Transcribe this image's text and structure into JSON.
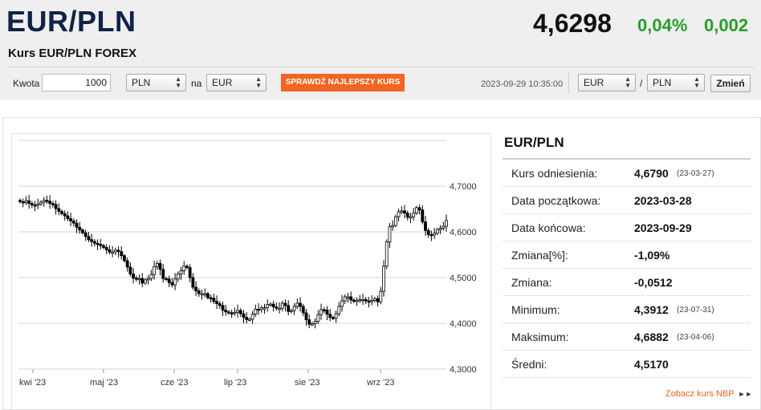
{
  "header": {
    "pair": "EUR/PLN",
    "subtitle": "Kurs EUR/PLN FOREX",
    "rate": "4,6298",
    "change_pct": "0,04%",
    "change_abs": "0,002"
  },
  "toolbar": {
    "amount_label": "Kwota",
    "amount_value": "1000",
    "from_currency": "PLN",
    "na_label": "na",
    "to_currency": "EUR",
    "best_rate_button": "SPRAWDŹ NAJLEPSZY KURS",
    "timestamp": "2023-09-29 10:35:00",
    "pair_base": "EUR",
    "slash": "/",
    "pair_quote": "PLN",
    "change_button": "Zmień"
  },
  "stats": {
    "title": "EUR/PLN",
    "rows": [
      {
        "label": "Kurs odniesienia:",
        "value": "4,6790",
        "date": "(23-03-27)"
      },
      {
        "label": "Data początkowa:",
        "value": "2023-03-28",
        "date": ""
      },
      {
        "label": "Data końcowa:",
        "value": "2023-09-29",
        "date": ""
      },
      {
        "label": "Zmiana[%]:",
        "value": "-1,09%",
        "date": ""
      },
      {
        "label": "Zmiana:",
        "value": "-0,0512",
        "date": ""
      },
      {
        "label": "Minimum:",
        "value": "4,3912",
        "date": "(23-07-31)"
      },
      {
        "label": "Maksimum:",
        "value": "4,6882",
        "date": "(23-04-06)"
      },
      {
        "label": "Średni:",
        "value": "4,5170",
        "date": ""
      }
    ],
    "nbp_link": "Zobacz kurs NBP",
    "nbp_link_icon": "double-chevron-right-icon"
  },
  "colors": {
    "title_navy": "#0f2347",
    "positive_green": "#2a9d2a",
    "accent_orange": "#f26522",
    "link_orange": "#e2661f",
    "candle": "#000000"
  },
  "chart_data": {
    "type": "candlestick",
    "x_tick_labels": [
      "kwi '23",
      "maj '23",
      "cze '23",
      "lip '23",
      "sie '23",
      "wrz '23"
    ],
    "y_tick_labels": [
      "4,7000",
      "4,6000",
      "4,5000",
      "4,4000",
      "4,3000"
    ],
    "ylim": [
      4.3,
      4.8
    ],
    "grid": true,
    "daily_close": [
      4.666,
      4.664,
      4.668,
      4.662,
      4.659,
      4.658,
      4.661,
      4.665,
      4.669,
      4.667,
      4.662,
      4.66,
      4.651,
      4.645,
      4.64,
      4.635,
      4.629,
      4.624,
      4.619,
      4.61,
      4.604,
      4.598,
      4.59,
      4.583,
      4.579,
      4.575,
      4.573,
      4.57,
      4.566,
      4.561,
      4.556,
      4.556,
      4.56,
      4.557,
      4.548,
      4.537,
      4.523,
      4.508,
      4.499,
      4.498,
      4.498,
      4.488,
      4.495,
      4.498,
      4.507,
      4.524,
      4.531,
      4.518,
      4.498,
      4.497,
      4.489,
      4.484,
      4.497,
      4.508,
      4.515,
      4.525,
      4.522,
      4.5,
      4.479,
      4.471,
      4.465,
      4.465,
      4.465,
      4.456,
      4.455,
      4.448,
      4.443,
      4.439,
      4.429,
      4.425,
      4.423,
      4.422,
      4.424,
      4.428,
      4.421,
      4.413,
      4.408,
      4.409,
      4.42,
      4.431,
      4.43,
      4.434,
      4.434,
      4.441,
      4.442,
      4.436,
      4.433,
      4.433,
      4.444,
      4.439,
      4.426,
      4.428,
      4.437,
      4.444,
      4.437,
      4.423,
      4.408,
      4.398,
      4.399,
      4.404,
      4.419,
      4.43,
      4.429,
      4.42,
      4.413,
      4.411,
      4.421,
      4.437,
      4.449,
      4.458,
      4.458,
      4.451,
      4.448,
      4.45,
      4.452,
      4.452,
      4.449,
      4.448,
      4.45,
      4.454,
      4.447,
      4.47,
      4.525,
      4.578,
      4.611,
      4.614,
      4.633,
      4.644,
      4.646,
      4.641,
      4.632,
      4.633,
      4.641,
      4.653,
      4.648,
      4.622,
      4.603,
      4.594,
      4.593,
      4.597,
      4.605,
      4.608,
      4.612,
      4.625
    ]
  }
}
